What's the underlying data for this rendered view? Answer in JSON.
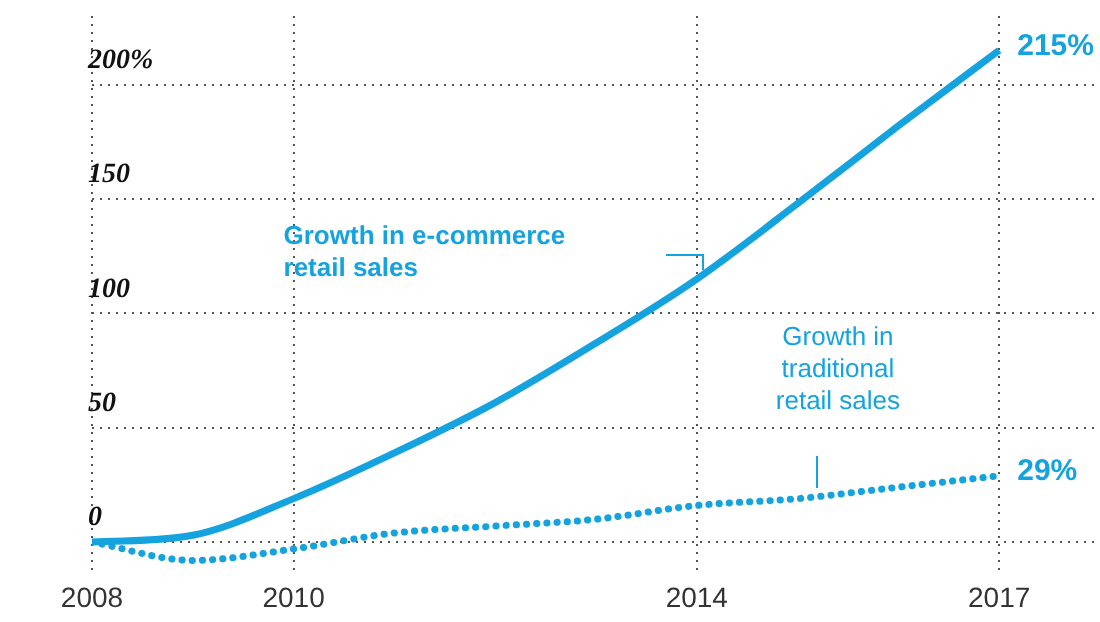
{
  "chart_data": {
    "type": "line",
    "x": [
      2008,
      2009,
      2010,
      2011,
      2012,
      2013,
      2014,
      2015,
      2016,
      2017
    ],
    "series": [
      {
        "name": "Growth in e-commerce retail sales",
        "color": "#14a3df",
        "line_style": "solid",
        "values": [
          0,
          3,
          19,
          39,
          61,
          87,
          115,
          148,
          182,
          215
        ],
        "value_labels": [
          null,
          null,
          null,
          null,
          null,
          null,
          null,
          null,
          null,
          "215%"
        ]
      },
      {
        "name": "Growth in traditional retail sales",
        "color": "#14a3df",
        "line_style": "dotted",
        "values": [
          0,
          -8,
          -3,
          4,
          7,
          10,
          16,
          19,
          24,
          29
        ],
        "value_labels": [
          null,
          null,
          null,
          null,
          null,
          null,
          null,
          null,
          null,
          "29%"
        ]
      }
    ],
    "xlim": [
      2008,
      2018
    ],
    "xticks": [
      2008,
      2010,
      2014,
      2017
    ],
    "ylim": [
      -15,
      230
    ],
    "yticks": [
      0,
      50,
      100,
      150,
      {
        "value": 200,
        "label": "200%"
      }
    ],
    "grid": true,
    "marker": "none",
    "legend": false
  }
}
